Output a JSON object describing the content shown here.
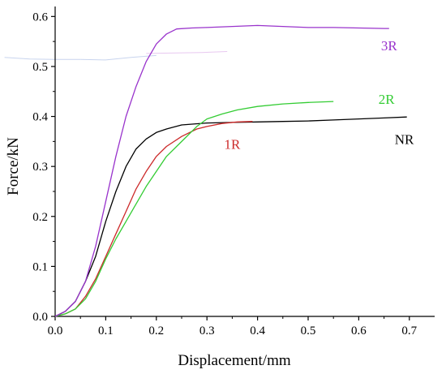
{
  "chart_data": {
    "type": "line",
    "xlabel": "Displacement/mm",
    "ylabel": "Force/kN",
    "xlim": [
      0.0,
      0.75
    ],
    "ylim": [
      0.0,
      0.62
    ],
    "x_ticks": [
      "0.0",
      "0.1",
      "0.2",
      "0.3",
      "0.4",
      "0.5",
      "0.6",
      "0.7"
    ],
    "y_ticks": [
      "0.0",
      "0.1",
      "0.2",
      "0.3",
      "0.4",
      "0.5",
      "0.6"
    ],
    "grid": false,
    "series": [
      {
        "name": "NR",
        "color": "#000000",
        "label_at": [
          0.69,
          0.345
        ],
        "points": [
          [
            0.0,
            0.0
          ],
          [
            0.02,
            0.01
          ],
          [
            0.04,
            0.03
          ],
          [
            0.06,
            0.07
          ],
          [
            0.08,
            0.12
          ],
          [
            0.1,
            0.19
          ],
          [
            0.12,
            0.25
          ],
          [
            0.14,
            0.3
          ],
          [
            0.16,
            0.335
          ],
          [
            0.18,
            0.355
          ],
          [
            0.2,
            0.368
          ],
          [
            0.22,
            0.375
          ],
          [
            0.25,
            0.383
          ],
          [
            0.3,
            0.387
          ],
          [
            0.35,
            0.388
          ],
          [
            0.4,
            0.389
          ],
          [
            0.45,
            0.39
          ],
          [
            0.5,
            0.391
          ],
          [
            0.55,
            0.393
          ],
          [
            0.6,
            0.395
          ],
          [
            0.65,
            0.397
          ],
          [
            0.695,
            0.399
          ]
        ]
      },
      {
        "name": "1R",
        "color": "#cc2a2a",
        "label_at": [
          0.35,
          0.335
        ],
        "points": [
          [
            0.0,
            0.0
          ],
          [
            0.02,
            0.005
          ],
          [
            0.04,
            0.015
          ],
          [
            0.06,
            0.04
          ],
          [
            0.08,
            0.075
          ],
          [
            0.1,
            0.12
          ],
          [
            0.12,
            0.165
          ],
          [
            0.14,
            0.21
          ],
          [
            0.16,
            0.255
          ],
          [
            0.18,
            0.29
          ],
          [
            0.2,
            0.32
          ],
          [
            0.22,
            0.34
          ],
          [
            0.25,
            0.36
          ],
          [
            0.28,
            0.375
          ],
          [
            0.3,
            0.38
          ],
          [
            0.33,
            0.386
          ],
          [
            0.36,
            0.389
          ],
          [
            0.39,
            0.39
          ]
        ]
      },
      {
        "name": "2R",
        "color": "#33cc33",
        "label_at": [
          0.655,
          0.425
        ],
        "points": [
          [
            0.0,
            0.0
          ],
          [
            0.02,
            0.005
          ],
          [
            0.04,
            0.015
          ],
          [
            0.06,
            0.035
          ],
          [
            0.08,
            0.07
          ],
          [
            0.1,
            0.115
          ],
          [
            0.12,
            0.155
          ],
          [
            0.14,
            0.19
          ],
          [
            0.16,
            0.225
          ],
          [
            0.18,
            0.26
          ],
          [
            0.2,
            0.29
          ],
          [
            0.22,
            0.32
          ],
          [
            0.25,
            0.35
          ],
          [
            0.28,
            0.38
          ],
          [
            0.3,
            0.395
          ],
          [
            0.33,
            0.405
          ],
          [
            0.36,
            0.413
          ],
          [
            0.4,
            0.42
          ],
          [
            0.45,
            0.425
          ],
          [
            0.5,
            0.428
          ],
          [
            0.55,
            0.43
          ]
        ]
      },
      {
        "name": "3R",
        "color": "#9933cc",
        "label_at": [
          0.66,
          0.532
        ],
        "points": [
          [
            0.0,
            0.0
          ],
          [
            0.02,
            0.01
          ],
          [
            0.04,
            0.03
          ],
          [
            0.06,
            0.07
          ],
          [
            0.08,
            0.14
          ],
          [
            0.1,
            0.23
          ],
          [
            0.12,
            0.32
          ],
          [
            0.14,
            0.4
          ],
          [
            0.16,
            0.46
          ],
          [
            0.18,
            0.51
          ],
          [
            0.2,
            0.545
          ],
          [
            0.22,
            0.565
          ],
          [
            0.24,
            0.575
          ],
          [
            0.27,
            0.577
          ],
          [
            0.3,
            0.578
          ],
          [
            0.35,
            0.58
          ],
          [
            0.4,
            0.582
          ],
          [
            0.45,
            0.58
          ],
          [
            0.5,
            0.578
          ],
          [
            0.55,
            0.578
          ],
          [
            0.6,
            0.577
          ],
          [
            0.65,
            0.576
          ],
          [
            0.66,
            0.576
          ]
        ]
      }
    ],
    "artifact_lines": [
      {
        "color": "#c8d4ee",
        "points": [
          [
            -0.1,
            0.518
          ],
          [
            -0.05,
            0.515
          ],
          [
            0.0,
            0.514
          ],
          [
            0.05,
            0.514
          ]
        ]
      },
      {
        "color": "#c8d4ee",
        "points": [
          [
            0.05,
            0.514
          ],
          [
            0.1,
            0.513
          ],
          [
            0.15,
            0.518
          ],
          [
            0.2,
            0.522
          ]
        ]
      },
      {
        "color": "#e8c8f0",
        "points": [
          [
            0.18,
            0.526
          ],
          [
            0.24,
            0.527
          ],
          [
            0.29,
            0.528
          ],
          [
            0.34,
            0.53
          ]
        ]
      }
    ]
  }
}
